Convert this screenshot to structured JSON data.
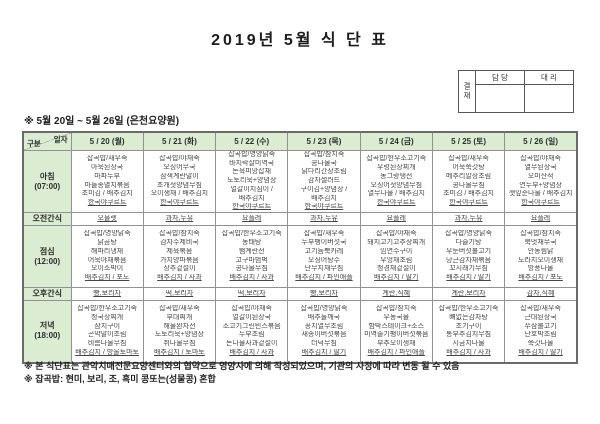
{
  "title": "2019년 5월 식 단 표",
  "approval": {
    "stamp": "결재",
    "col1": "담 당",
    "col2": "대 리"
  },
  "subtitle": "※  5월 20일 ~ 5월 26일 (은천요양원)",
  "table": {
    "corner": {
      "top": "일자",
      "bottom": "구분"
    },
    "dates": [
      "5 / 20 (월)",
      "5 / 21 (화)",
      "5 / 22 (수)",
      "5 / 23 (목)",
      "5 / 24 (금)",
      "5 / 25 (토)",
      "5 / 26 (일)"
    ],
    "rows": [
      {
        "id": "breakfast",
        "type": "meal",
        "label": "아침",
        "time": "(07:00)",
        "cells": [
          [
            "잡곡밥/새우죽",
            "아욱된장국",
            "마파두부",
            "마늘종멸치볶음",
            "조미김 / 배추김치",
            "한국야쿠르트"
          ],
          [
            "잡곡밥/야채죽",
            "오징어무국",
            "삼색계란말이",
            "조개젓양념무침",
            "오이생채 / 배추김치",
            "한국야쿠르트"
          ],
          [
            "잡곡밥/영양닭죽",
            "바지락살미역국",
            "돈육피망잡채",
            "도토리묵+양념장",
            "얼갈이지짐이 /",
            "배추김치",
            "한국야쿠르트"
          ],
          [
            "잡곡밥/참치죽",
            "콩나물국",
            "닭다리간장조림",
            "감자샐러드",
            "구이김+양념장 /",
            "배추김치",
            "한국야쿠르트"
          ],
          [
            "잡곡밥/한우소고기죽",
            "우렁된장찌개",
            "동그랑땡전",
            "오징어젓양념무침",
            "열무나물 / 배추김치",
            "한국야쿠르트"
          ],
          [
            "잡곡밥/새우죽",
            "어묵쑥갓탕",
            "메추리알장조림",
            "콩나물무침",
            "조미김 / 배추김치",
            "한국야쿠르트"
          ],
          [
            "잡곡밥/야채죽",
            "열무된장국",
            "오미산적",
            "연두부+양념장",
            "깻잎순나물 / 배추김치",
            "한국야쿠르트"
          ]
        ]
      },
      {
        "id": "am-snack",
        "type": "snack",
        "label": "오전간식",
        "cells": [
          "오믈렛",
          "과자,두유",
          "요플레",
          "과자,두유",
          "요플레",
          "과자,두유",
          "요플레"
        ]
      },
      {
        "id": "lunch",
        "type": "meal",
        "label": "점심",
        "time": "(12:00)",
        "cells": [
          [
            "잡곡밥/영양닭죽",
            "닭곰탕",
            "해파리냉채",
            "어묵야채볶음",
            "오이소박이",
            "배추김치 / 포도"
          ],
          [
            "잡곡밥/참치죽",
            "감자수제비국",
            "제육볶음",
            "가지양파볶음",
            "상추겉절이",
            "배추김치 / 사과"
          ],
          [
            "잡곡밥/한우소고기죽",
            "동태탕",
            "햄계란전",
            "고구마범벅",
            "콩나물무침",
            "배추김치 / 사과"
          ],
          [
            "잡곡밥/새우죽",
            "두부팽이버섯국",
            "고기듬뿍카레",
            "오징어탕수",
            "단무지채무침",
            "배추김치 / 파인애플"
          ],
          [
            "잡곡밥/야채죽",
            "돼지고기고추장찌개",
            "임연수구이",
            "우엉채조림",
            "청경채겉절이",
            "배추김치 / 딸기"
          ],
          [
            "잡곡밥/영양닭죽",
            "다슬기탕",
            "우둔버섯불고기",
            "당근감자채볶음",
            "꼬시래기무침",
            "배추김치 / 딸기"
          ],
          [
            "잡곡밥/참치죽",
            "북엇채무국",
            "안동찜닭",
            "도라지오이생채",
            "방풍나물",
            "배추김치 / 포도"
          ]
        ]
      },
      {
        "id": "pm-snack",
        "type": "snack",
        "label": "오후간식",
        "cells": [
          "빵,보리차",
          "떡,보리차",
          "떡,보리차",
          "빵,보리차",
          "계란,식혜",
          "계란,보리차",
          "감자,식혜"
        ]
      },
      {
        "id": "dinner",
        "type": "meal",
        "label": "저녁",
        "time": "(18:00)",
        "cells": [
          [
            "잡곡밥/한우소고기죽",
            "청국장찌개",
            "삼치구이",
            "곤약말이조림",
            "비름나물무침",
            "배추김치 / 방울토마토"
          ],
          [
            "잡곡밥/새우죽",
            "부대찌개",
            "해물완자전",
            "도토리묵+양념장",
            "취나물무침",
            "배추김치 / 토마토"
          ],
          [
            "잡곡밥/야채죽",
            "얼갈이된장국",
            "소고기그린빈스볶음",
            "두부조림",
            "돈나물사과겉절이",
            "배추김치 / 사과"
          ],
          [
            "잡곡밥/영양닭죽",
            "배추들깨국",
            "꽁치열무조림",
            "새송이버섯볶음",
            "더덕무침",
            "배추김치 / 딸기"
          ],
          [
            "잡곡밥/참치죽",
            "우동국물",
            "함박스테이크+소스",
            "미역줄기팽이버섯볶음",
            "부추오이생채",
            "배추김치 / 파인애플"
          ],
          [
            "잡곡밥/한우소고기죽",
            "뼈없는감자탕",
            "조기구이",
            "통부추김치무침",
            "시금치나물",
            "배추김치 / 사과"
          ],
          [
            "잡곡밥/새우죽",
            "근대된장국",
            "쭈삼불고기",
            "단호박조림",
            "쑥갓나물",
            "배추김치 / 딸기"
          ]
        ]
      }
    ]
  },
  "notes": [
    "※ 본 식단표는 관악치매전문요양센터와의 협약으로 영양사에 의해 작성되었으며, 기관의 사정에 따라 변동 될 수 있음",
    "※ 잡곡밥: 현미, 보리, 조, 흑미 콩또는(성물콩) 혼합"
  ]
}
